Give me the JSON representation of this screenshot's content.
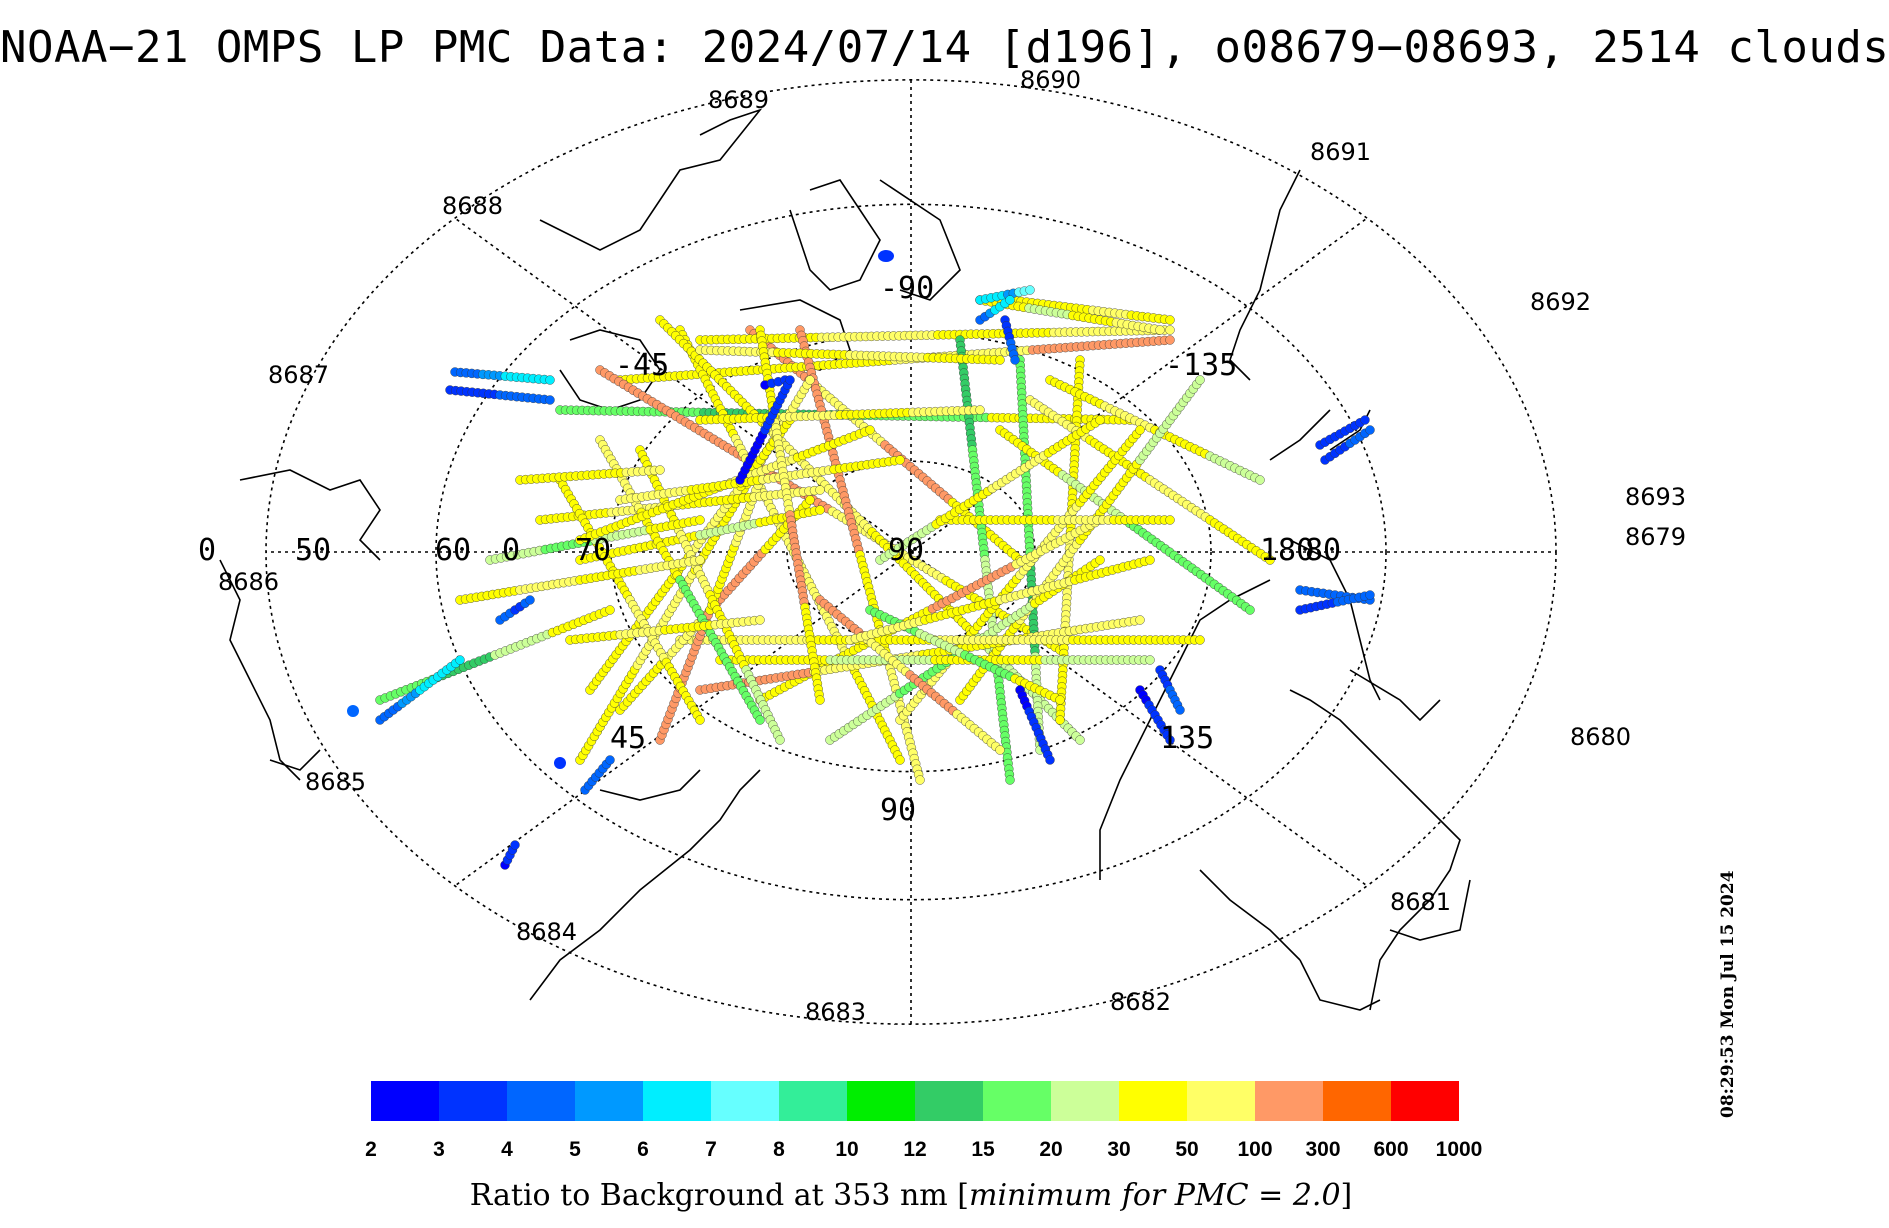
{
  "title": "NOAA−21 OMPS LP PMC Data: 2024/07/14 [d196], o08679−08693, 2514 clouds",
  "timestamp": "08:29:53 Mon Jul 15 2024",
  "orbit_labels": [
    "8679",
    "8680",
    "8681",
    "8682",
    "8683",
    "8684",
    "8685",
    "8686",
    "8687",
    "8688",
    "8689",
    "8690",
    "8691",
    "8692",
    "8693"
  ],
  "latitude_labels": [
    "50",
    "60",
    "70",
    "80"
  ],
  "longitude_labels": [
    "-90",
    "-45",
    "0",
    "45",
    "90",
    "135",
    "180",
    "-135"
  ],
  "center_label": "90",
  "colorbar": {
    "ticks": [
      "2",
      "3",
      "4",
      "5",
      "6",
      "7",
      "8",
      "10",
      "12",
      "15",
      "20",
      "30",
      "50",
      "100",
      "300",
      "600",
      "1000"
    ],
    "colors": [
      "#0000ff",
      "#0033ff",
      "#0066ff",
      "#0099ff",
      "#00eeff",
      "#66ffff",
      "#33ee99",
      "#00ee00",
      "#33cc66",
      "#66ff66",
      "#ccff99",
      "#ffff00",
      "#ffff66",
      "#ff9966",
      "#ff6600",
      "#ff0000"
    ],
    "caption_prefix": "Ratio to Background at 353 nm ",
    "caption_italic": "minimum for PMC = 2.0"
  },
  "map": {
    "projection": "north polar stereographic",
    "cloud_count": 2514
  }
}
